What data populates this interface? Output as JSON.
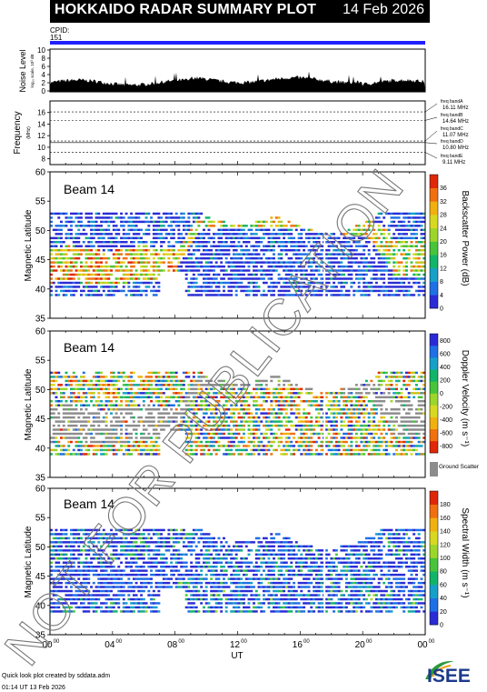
{
  "header": {
    "title": "HOKKAIDO RADAR SUMMARY PLOT",
    "date": "14 Feb 2026",
    "cpid_label": "CPID:",
    "cpid_value": "151"
  },
  "colors": {
    "cpid_bar": "#2020ff",
    "black": "#000000"
  },
  "noise_panel": {
    "ylabel": "Noise Level",
    "ylabel_sub": "log₁₀ scale, 10³ dB",
    "yticks": [
      "0",
      "2",
      "4",
      "6",
      "8",
      "10"
    ]
  },
  "freq_panel": {
    "ylabel": "Frequency",
    "ylabel_unit": "(MHz)",
    "yticks": [
      "8",
      "10",
      "12",
      "14",
      "16"
    ],
    "bands": [
      {
        "name": "freq bandA",
        "value": "16.11 MHz"
      },
      {
        "name": "freq bandB",
        "value": "14.64 MHz"
      },
      {
        "name": "freq bandC",
        "value": "11.07 MHz"
      },
      {
        "name": "freq bandD",
        "value": "10.80 MHz"
      },
      {
        "name": "freq bandE",
        "value": "9.11 MHz"
      }
    ]
  },
  "panels": [
    {
      "beam_label": "Beam 14",
      "ylabel": "Magnetic Latitude",
      "yticks": [
        "35",
        "40",
        "45",
        "50",
        "55",
        "60"
      ],
      "cbar_label": "Backscatter Power (dB)",
      "cbar_ticks": [
        "0",
        "4",
        "8",
        "12",
        "16",
        "20",
        "24",
        "28",
        "32",
        "36"
      ],
      "cbar_colors": [
        "#2b2bd6",
        "#1f6fe6",
        "#16a0c8",
        "#12b46a",
        "#48c43a",
        "#9cd62a",
        "#d8d820",
        "#f0b010",
        "#f07010",
        "#e02808"
      ]
    },
    {
      "beam_label": "Beam 14",
      "ylabel": "Magnetic Latitude",
      "yticks": [
        "35",
        "40",
        "45",
        "50",
        "55",
        "60"
      ],
      "cbar_label": "Doppler Velocity (m s⁻¹)",
      "cbar_ticks": [
        "-800",
        "-600",
        "-400",
        "-200",
        "0",
        "200",
        "400",
        "600",
        "800"
      ],
      "cbar_colors": [
        "#e02808",
        "#f07010",
        "#f0b010",
        "#d8d820",
        "#9cd62a",
        "#48c43a",
        "#12b46a",
        "#16a0c8",
        "#1f6fe6",
        "#2b2bd6"
      ],
      "ground_scatter_label": "Ground Scatter",
      "ground_scatter_color": "#8c8c8c"
    },
    {
      "beam_label": "Beam 14",
      "ylabel": "Magnetic Latitude",
      "yticks": [
        "35",
        "40",
        "45",
        "50",
        "55",
        "60"
      ],
      "cbar_label": "Spectral Width (m s⁻¹)",
      "cbar_ticks": [
        "0",
        "20",
        "40",
        "60",
        "80",
        "100",
        "120",
        "140",
        "160",
        "180"
      ],
      "cbar_colors": [
        "#2b2bd6",
        "#1f6fe6",
        "#16a0c8",
        "#12b46a",
        "#48c43a",
        "#9cd62a",
        "#d8d820",
        "#f0b010",
        "#f07010",
        "#e02808"
      ]
    }
  ],
  "xaxis": {
    "label": "UT",
    "ticks": [
      "00",
      "04",
      "08",
      "12",
      "16",
      "20",
      "00"
    ],
    "tick_sup": "00"
  },
  "watermark": "NOT FOR PUBLICATION",
  "footer": {
    "line1": "Quick look plot created by sddata.adm",
    "line2": "01:14 UT 13 Feb 2026",
    "logo_text": "ISEE"
  }
}
